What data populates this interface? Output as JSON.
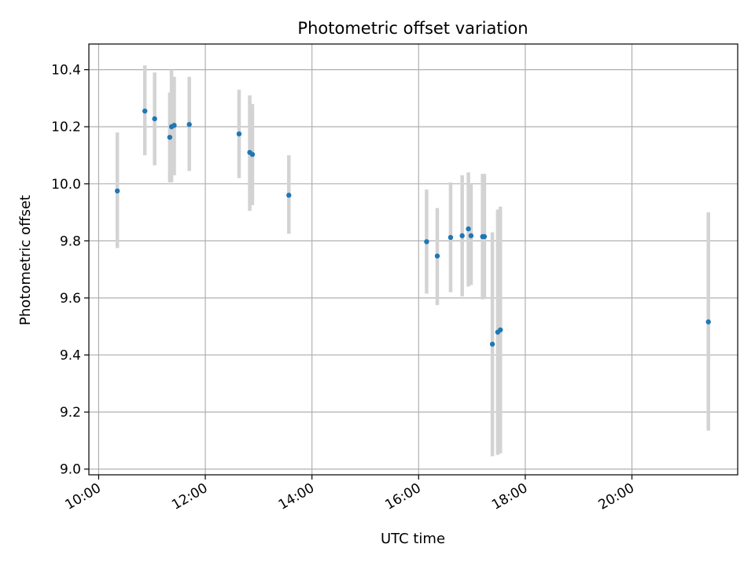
{
  "chart_data": {
    "type": "scatter",
    "title": "Photometric offset variation",
    "xlabel": "UTC time",
    "ylabel": "Photometric offset",
    "x_ticks": [
      "10:00",
      "12:00",
      "14:00",
      "16:00",
      "18:00",
      "20:00"
    ],
    "y_ticks": [
      "9.0",
      "9.2",
      "9.4",
      "9.6",
      "9.8",
      "10.0",
      "10.2",
      "10.4"
    ],
    "xlim": [
      "09:49",
      "21:59"
    ],
    "ylim": [
      8.98,
      10.49
    ],
    "grid": true,
    "marker_color": "#1f77b4",
    "errorbar_color": "#d3d3d3",
    "points": [
      {
        "t": "10:21",
        "y": 9.975,
        "lo": 9.775,
        "hi": 10.18
      },
      {
        "t": "10:52",
        "y": 10.255,
        "lo": 10.1,
        "hi": 10.415
      },
      {
        "t": "11:03",
        "y": 10.228,
        "lo": 10.065,
        "hi": 10.39
      },
      {
        "t": "11:20",
        "y": 10.163,
        "lo": 10.005,
        "hi": 10.32
      },
      {
        "t": "11:22",
        "y": 10.2,
        "lo": 10.005,
        "hi": 10.4
      },
      {
        "t": "11:25",
        "y": 10.205,
        "lo": 10.03,
        "hi": 10.375
      },
      {
        "t": "11:42",
        "y": 10.208,
        "lo": 10.045,
        "hi": 10.375
      },
      {
        "t": "12:38",
        "y": 10.175,
        "lo": 10.02,
        "hi": 10.33
      },
      {
        "t": "12:50",
        "y": 10.11,
        "lo": 9.905,
        "hi": 10.31
      },
      {
        "t": "12:53",
        "y": 10.103,
        "lo": 9.925,
        "hi": 10.28
      },
      {
        "t": "13:34",
        "y": 9.96,
        "lo": 9.825,
        "hi": 10.1
      },
      {
        "t": "16:09",
        "y": 9.797,
        "lo": 9.615,
        "hi": 9.98
      },
      {
        "t": "16:21",
        "y": 9.747,
        "lo": 9.575,
        "hi": 9.915
      },
      {
        "t": "16:36",
        "y": 9.812,
        "lo": 9.62,
        "hi": 10.005
      },
      {
        "t": "16:49",
        "y": 9.818,
        "lo": 9.605,
        "hi": 10.03
      },
      {
        "t": "16:56",
        "y": 9.842,
        "lo": 9.64,
        "hi": 10.04
      },
      {
        "t": "16:59",
        "y": 9.818,
        "lo": 9.645,
        "hi": 10.0
      },
      {
        "t": "17:12",
        "y": 9.815,
        "lo": 9.595,
        "hi": 10.035
      },
      {
        "t": "17:14",
        "y": 9.815,
        "lo": 9.6,
        "hi": 10.035
      },
      {
        "t": "17:23",
        "y": 9.438,
        "lo": 9.045,
        "hi": 9.83
      },
      {
        "t": "17:29",
        "y": 9.48,
        "lo": 9.05,
        "hi": 9.91
      },
      {
        "t": "17:32",
        "y": 9.488,
        "lo": 9.055,
        "hi": 9.92
      },
      {
        "t": "21:26",
        "y": 9.516,
        "lo": 9.135,
        "hi": 9.9
      }
    ]
  }
}
